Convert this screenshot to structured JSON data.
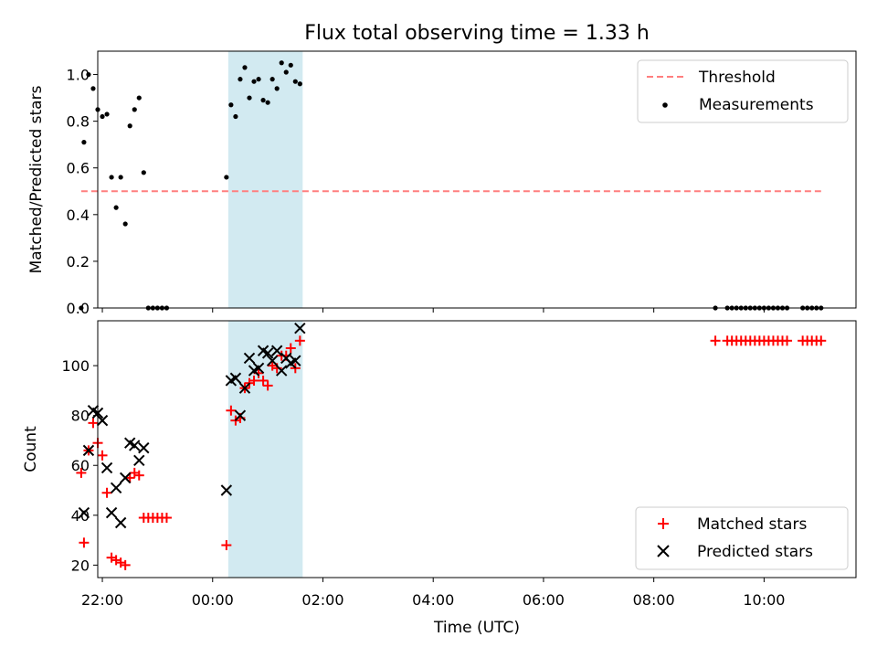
{
  "chart_data": [
    {
      "type": "scatter",
      "title": "Flux total observing time = 1.33 h",
      "xlabel": "",
      "ylabel": "Matched/Predicted stars",
      "xlim": [
        "21:55",
        "11:40"
      ],
      "ylim": [
        0,
        1.1
      ],
      "yticks": [
        "0.0",
        "0.2",
        "0.4",
        "0.6",
        "0.8",
        "1.0"
      ],
      "grid": false,
      "legend": {
        "position": "top-right",
        "entries": [
          "Threshold",
          "Measurements"
        ]
      },
      "highlight_span": {
        "x0": "00:17",
        "x1": "01:38",
        "color": "#add8e6"
      },
      "series": [
        {
          "name": "Threshold",
          "kind": "line",
          "style": "dashed",
          "color": "#ff7f7f",
          "x": [
            "21:37",
            "11:02"
          ],
          "y": [
            0.5,
            0.5
          ]
        },
        {
          "name": "Measurements",
          "kind": "scatter",
          "color": "#000000",
          "points": [
            [
              "21:37",
              0.0
            ],
            [
              "21:40",
              0.71
            ],
            [
              "21:45",
              1.0
            ],
            [
              "21:50",
              0.94
            ],
            [
              "21:55",
              0.85
            ],
            [
              "22:00",
              0.82
            ],
            [
              "22:05",
              0.83
            ],
            [
              "22:10",
              0.56
            ],
            [
              "22:15",
              0.43
            ],
            [
              "22:20",
              0.56
            ],
            [
              "22:25",
              0.36
            ],
            [
              "22:30",
              0.78
            ],
            [
              "22:35",
              0.85
            ],
            [
              "22:40",
              0.9
            ],
            [
              "22:45",
              0.58
            ],
            [
              "22:50",
              0.0
            ],
            [
              "22:55",
              0.0
            ],
            [
              "23:00",
              0.0
            ],
            [
              "23:05",
              0.0
            ],
            [
              "23:10",
              0.0
            ],
            [
              "00:15",
              0.56
            ],
            [
              "00:20",
              0.87
            ],
            [
              "00:25",
              0.82
            ],
            [
              "00:30",
              0.98
            ],
            [
              "00:35",
              1.03
            ],
            [
              "00:40",
              0.9
            ],
            [
              "00:45",
              0.97
            ],
            [
              "00:50",
              0.98
            ],
            [
              "00:55",
              0.89
            ],
            [
              "01:00",
              0.88
            ],
            [
              "01:05",
              0.98
            ],
            [
              "01:10",
              0.94
            ],
            [
              "01:15",
              1.05
            ],
            [
              "01:20",
              1.01
            ],
            [
              "01:25",
              1.04
            ],
            [
              "01:30",
              0.97
            ],
            [
              "01:35",
              0.96
            ],
            [
              "09:07",
              0.0
            ],
            [
              "09:20",
              0.0
            ],
            [
              "09:25",
              0.0
            ],
            [
              "09:30",
              0.0
            ],
            [
              "09:35",
              0.0
            ],
            [
              "09:40",
              0.0
            ],
            [
              "09:45",
              0.0
            ],
            [
              "09:50",
              0.0
            ],
            [
              "09:55",
              0.0
            ],
            [
              "10:00",
              0.0
            ],
            [
              "10:05",
              0.0
            ],
            [
              "10:10",
              0.0
            ],
            [
              "10:15",
              0.0
            ],
            [
              "10:20",
              0.0
            ],
            [
              "10:25",
              0.0
            ],
            [
              "10:42",
              0.0
            ],
            [
              "10:47",
              0.0
            ],
            [
              "10:52",
              0.0
            ],
            [
              "10:57",
              0.0
            ],
            [
              "11:02",
              0.0
            ]
          ]
        }
      ]
    },
    {
      "type": "scatter",
      "title": "",
      "xlabel": "Time (UTC)",
      "ylabel": "Count",
      "xlim": [
        "21:55",
        "11:40"
      ],
      "ylim": [
        15,
        118
      ],
      "xticks": [
        "22:00",
        "00:00",
        "02:00",
        "04:00",
        "06:00",
        "08:00",
        "10:00"
      ],
      "yticks": [
        "20",
        "40",
        "60",
        "80",
        "100"
      ],
      "grid": false,
      "legend": {
        "position": "bottom-right",
        "entries": [
          "Matched stars",
          "Predicted stars"
        ]
      },
      "highlight_span": {
        "x0": "00:17",
        "x1": "01:38",
        "color": "#add8e6"
      },
      "series": [
        {
          "name": "Matched stars",
          "marker": "+",
          "color": "#ff0000",
          "points": [
            [
              "21:37",
              57
            ],
            [
              "21:40",
              29
            ],
            [
              "21:45",
              66
            ],
            [
              "21:50",
              77
            ],
            [
              "21:55",
              69
            ],
            [
              "22:00",
              64
            ],
            [
              "22:05",
              49
            ],
            [
              "22:10",
              23
            ],
            [
              "22:15",
              22
            ],
            [
              "22:20",
              21
            ],
            [
              "22:25",
              20
            ],
            [
              "22:30",
              55
            ],
            [
              "22:35",
              57
            ],
            [
              "22:40",
              56
            ],
            [
              "22:45",
              39
            ],
            [
              "22:50",
              39
            ],
            [
              "22:55",
              39
            ],
            [
              "23:00",
              39
            ],
            [
              "23:05",
              39
            ],
            [
              "23:10",
              39
            ],
            [
              "00:15",
              28
            ],
            [
              "00:20",
              82
            ],
            [
              "00:25",
              78
            ],
            [
              "00:30",
              79
            ],
            [
              "00:35",
              91
            ],
            [
              "00:40",
              93
            ],
            [
              "00:45",
              94
            ],
            [
              "00:50",
              97
            ],
            [
              "00:55",
              94
            ],
            [
              "01:00",
              92
            ],
            [
              "01:05",
              100
            ],
            [
              "01:10",
              99
            ],
            [
              "01:15",
              104
            ],
            [
              "01:20",
              104
            ],
            [
              "01:25",
              107
            ],
            [
              "01:30",
              99
            ],
            [
              "01:35",
              110
            ],
            [
              "09:07",
              110
            ],
            [
              "09:20",
              110
            ],
            [
              "09:25",
              110
            ],
            [
              "09:30",
              110
            ],
            [
              "09:35",
              110
            ],
            [
              "09:40",
              110
            ],
            [
              "09:45",
              110
            ],
            [
              "09:50",
              110
            ],
            [
              "09:55",
              110
            ],
            [
              "10:00",
              110
            ],
            [
              "10:05",
              110
            ],
            [
              "10:10",
              110
            ],
            [
              "10:15",
              110
            ],
            [
              "10:20",
              110
            ],
            [
              "10:25",
              110
            ],
            [
              "10:42",
              110
            ],
            [
              "10:47",
              110
            ],
            [
              "10:52",
              110
            ],
            [
              "10:57",
              110
            ],
            [
              "11:02",
              110
            ]
          ]
        },
        {
          "name": "Predicted stars",
          "marker": "x",
          "color": "#000000",
          "points": [
            [
              "21:40",
              41
            ],
            [
              "21:45",
              66
            ],
            [
              "21:50",
              82
            ],
            [
              "21:55",
              81
            ],
            [
              "22:00",
              78
            ],
            [
              "22:05",
              59
            ],
            [
              "22:10",
              41
            ],
            [
              "22:15",
              51
            ],
            [
              "22:20",
              37
            ],
            [
              "22:25",
              55
            ],
            [
              "22:30",
              69
            ],
            [
              "22:35",
              68
            ],
            [
              "22:40",
              62
            ],
            [
              "22:45",
              67
            ],
            [
              "00:15",
              50
            ],
            [
              "00:20",
              94
            ],
            [
              "00:25",
              95
            ],
            [
              "00:30",
              80
            ],
            [
              "00:35",
              91
            ],
            [
              "00:40",
              103
            ],
            [
              "00:45",
              98
            ],
            [
              "00:50",
              99
            ],
            [
              "00:55",
              106
            ],
            [
              "01:00",
              105
            ],
            [
              "01:05",
              102
            ],
            [
              "01:10",
              106
            ],
            [
              "01:15",
              98
            ],
            [
              "01:20",
              103
            ],
            [
              "01:25",
              101
            ],
            [
              "01:30",
              102
            ],
            [
              "01:35",
              115
            ]
          ]
        }
      ]
    }
  ]
}
